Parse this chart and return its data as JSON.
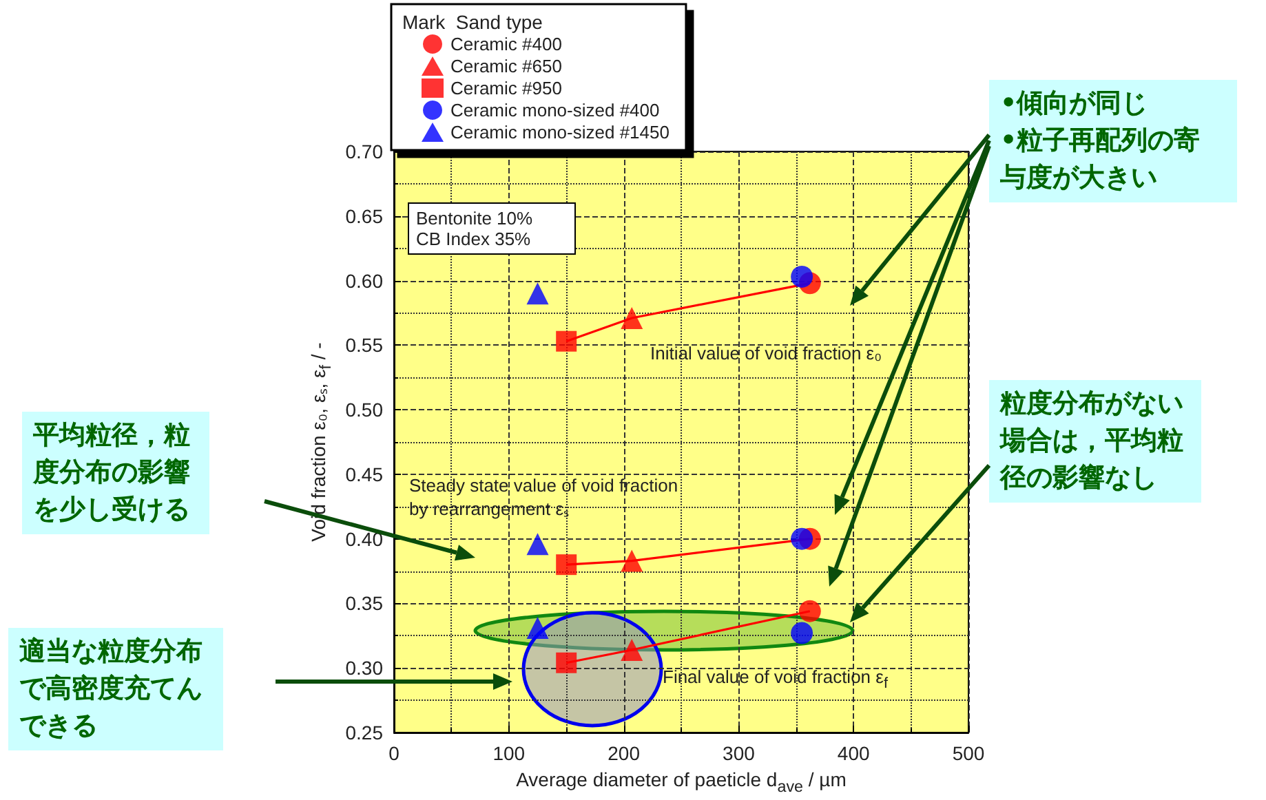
{
  "chart_data": {
    "type": "scatter",
    "xlabel": "Average diameter of paeticle d$_{ave}$ / µm",
    "ylabel": "Void fraction ε₀, εₛ, ε$_{f}$ / -",
    "legend_title": "Mark  Sand type",
    "legend": "top",
    "grid": true,
    "xlim": [
      0,
      500
    ],
    "xticks": [
      0,
      100,
      200,
      300,
      400,
      500
    ],
    "ylim": [
      0.25,
      0.7
    ],
    "yticks": [
      {
        "value": 0.25,
        "label": "0.25"
      },
      {
        "value": 0.3,
        "label": "0.30"
      },
      {
        "value": 0.35,
        "label": "0.35"
      },
      {
        "value": 0.4,
        "label": "0.40"
      },
      {
        "value": 0.45,
        "label": "0.45"
      },
      {
        "value": 0.5,
        "label": "0.50"
      },
      {
        "value": 0.55,
        "label": "0.55"
      },
      {
        "value": 0.6,
        "label": "0.60"
      },
      {
        "value": 0.65,
        "label": "0.65"
      },
      {
        "value": 0.7,
        "label": "0.70"
      }
    ],
    "series": [
      {
        "type": "line",
        "marker": "none",
        "color": "#ff0000",
        "x": [
          150,
          207,
          362
        ],
        "values": [
          0.553,
          0.571,
          0.598
        ]
      },
      {
        "type": "line",
        "marker": "none",
        "color": "#ff0000",
        "x": [
          150,
          207,
          362
        ],
        "values": [
          0.38,
          0.383,
          0.4
        ]
      },
      {
        "type": "line",
        "marker": "none",
        "color": "#ff0000",
        "x": [
          150,
          207,
          362
        ],
        "values": [
          0.304,
          0.314,
          0.344
        ]
      },
      {
        "name": "Ceramic #400",
        "marker": "circle",
        "color": "#ff0000",
        "x": [
          362,
          362,
          362
        ],
        "values": [
          0.598,
          0.4,
          0.344
        ]
      },
      {
        "name": "Ceramic #650",
        "marker": "triangle",
        "color": "#ff0000",
        "x": [
          207,
          207,
          207
        ],
        "values": [
          0.571,
          0.383,
          0.314
        ]
      },
      {
        "name": "Ceramic #950",
        "marker": "square",
        "color": "#ff0000",
        "x": [
          150,
          150,
          150
        ],
        "values": [
          0.553,
          0.38,
          0.304
        ]
      },
      {
        "name": "Ceramic mono-sized #400",
        "marker": "circle",
        "color": "#0000ff",
        "x": [
          355,
          355,
          355
        ],
        "values": [
          0.603,
          0.4,
          0.327
        ]
      },
      {
        "name": "Ceramic mono-sized #1450",
        "marker": "triangle",
        "color": "#0000ff",
        "x": [
          125,
          125,
          125
        ],
        "values": [
          0.59,
          0.396,
          0.331
        ]
      }
    ],
    "annotations": [
      "Bentonite 10%\nCB Index 35%",
      "Initial value of void fraction ε₀",
      "Steady state value of void fraction\nby rearrangement εₛ",
      "Final value of void fraction ε$_{f}$",
      "•傾向が同じ\n•粒子再配列の寄与度が大きい",
      "粒度分布がない場合は，平均粒径の影響なし",
      "平均粒径，粒度分布の影響を少し受ける",
      "適当な粒度分布で高密度充てんできる"
    ]
  }
}
